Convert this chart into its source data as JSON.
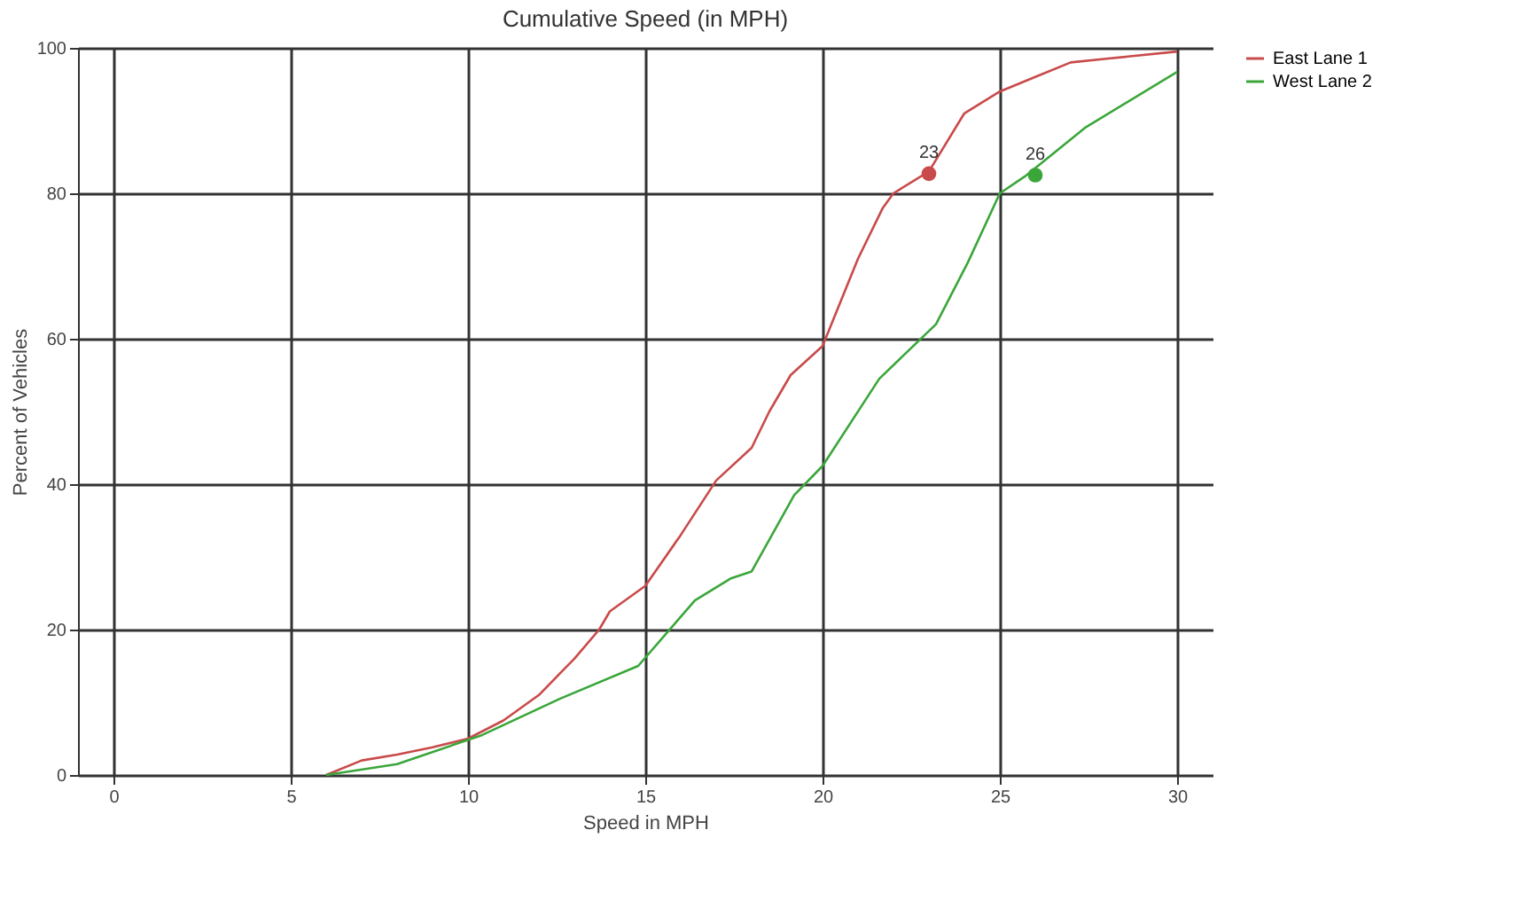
{
  "chart_data": {
    "type": "line",
    "title": "Cumulative Speed (in MPH)",
    "xlabel": "Speed in MPH",
    "ylabel": "Percent of Vehicles",
    "xlim": [
      -1,
      31
    ],
    "xticks": [
      0,
      5,
      10,
      15,
      20,
      25,
      30
    ],
    "ylim": [
      0,
      100
    ],
    "yticks": [
      0,
      20,
      40,
      60,
      80,
      100
    ],
    "grid": true,
    "legend": "top right",
    "line_style": "solid",
    "marker": "none",
    "series": [
      {
        "name": "East Lane 1",
        "color": "#c94a4a",
        "x": [
          6,
          7,
          8,
          9,
          10,
          11,
          12,
          12.6,
          13,
          13.7,
          14,
          15,
          16,
          17,
          18,
          18.5,
          19.1,
          20,
          20.5,
          21,
          21.7,
          22,
          23,
          24,
          25,
          26,
          27,
          28,
          30
        ],
        "values": [
          0,
          2,
          2.8,
          3.8,
          5,
          7.5,
          11,
          14,
          16,
          20,
          22.5,
          26,
          33,
          40.5,
          45,
          50,
          55,
          59,
          65,
          71,
          78,
          80,
          83,
          91,
          94,
          96,
          98,
          98.5,
          99.5
        ]
      },
      {
        "name": "West Lane 2",
        "color": "#3aa63a",
        "x": [
          6,
          8,
          10.4,
          12.6,
          14.8,
          16.4,
          17.4,
          18,
          19.2,
          20,
          21.6,
          23.2,
          24.1,
          25,
          25.7,
          27.4,
          30
        ],
        "values": [
          0,
          1.5,
          5.5,
          10.5,
          15,
          24,
          27,
          28,
          38.5,
          42.5,
          54.5,
          62,
          70.5,
          80,
          82.3,
          89,
          96.7
        ]
      },
      {
        "type": "scatter",
        "marker": "circle",
        "color": "#c94a4a",
        "x": [
          23
        ],
        "values": [
          82.7
        ]
      },
      {
        "type": "scatter",
        "marker": "circle",
        "color": "#3aa63a",
        "x": [
          26
        ],
        "values": [
          82.5
        ]
      }
    ],
    "annotations": [
      "23",
      "26"
    ]
  }
}
